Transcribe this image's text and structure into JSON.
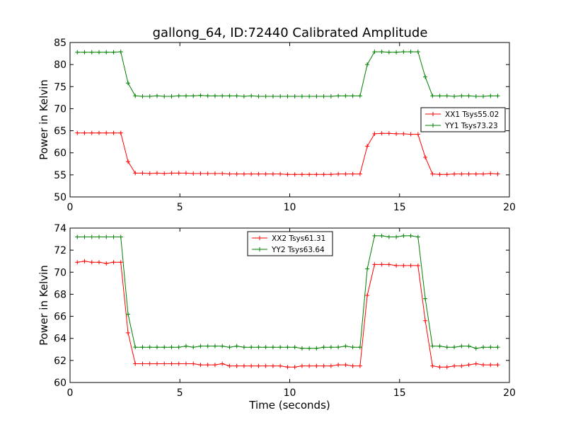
{
  "figure": {
    "title": "gallong_64, ID:72440 Calibrated Amplitude"
  },
  "chart_data": [
    {
      "type": "line",
      "title": "gallong_64, ID:72440 Calibrated Amplitude",
      "xlabel": "",
      "ylabel": "Power in Kelvin",
      "xlim": [
        0,
        20
      ],
      "ylim": [
        50,
        85
      ],
      "xticks": [
        "0",
        "5",
        "10",
        "15",
        "20"
      ],
      "yticks": [
        "50",
        "55",
        "60",
        "65",
        "70",
        "75",
        "80",
        "85"
      ],
      "grid": false,
      "legend_position": "center-right",
      "x": [
        0.33,
        0.66,
        0.99,
        1.32,
        1.65,
        1.98,
        2.31,
        2.64,
        2.97,
        3.3,
        3.63,
        3.96,
        4.29,
        4.62,
        4.95,
        5.28,
        5.61,
        5.94,
        6.27,
        6.6,
        6.93,
        7.26,
        7.59,
        7.92,
        8.25,
        8.58,
        8.91,
        9.24,
        9.57,
        9.9,
        10.23,
        10.56,
        10.89,
        11.22,
        11.55,
        11.88,
        12.21,
        12.54,
        12.87,
        13.2,
        13.53,
        13.86,
        14.19,
        14.52,
        14.85,
        15.18,
        15.51,
        15.84,
        16.17,
        16.5,
        16.83,
        17.16,
        17.49,
        17.82,
        18.15,
        18.48,
        18.81,
        19.14,
        19.47
      ],
      "series": [
        {
          "name": "XX1 Tsys55.02",
          "color": "#ff0000",
          "values": [
            64.5,
            64.5,
            64.5,
            64.5,
            64.5,
            64.5,
            64.5,
            58.0,
            55.4,
            55.4,
            55.3,
            55.4,
            55.3,
            55.4,
            55.4,
            55.4,
            55.3,
            55.3,
            55.3,
            55.3,
            55.3,
            55.2,
            55.2,
            55.2,
            55.2,
            55.2,
            55.2,
            55.2,
            55.2,
            55.1,
            55.1,
            55.1,
            55.1,
            55.1,
            55.1,
            55.1,
            55.2,
            55.2,
            55.2,
            55.2,
            61.5,
            64.3,
            64.4,
            64.4,
            64.3,
            64.3,
            64.2,
            64.2,
            59.0,
            55.2,
            55.1,
            55.1,
            55.2,
            55.2,
            55.2,
            55.2,
            55.2,
            55.3,
            55.2
          ]
        },
        {
          "name": "YY1 Tsys73.23",
          "color": "#008000",
          "values": [
            82.8,
            82.8,
            82.8,
            82.8,
            82.8,
            82.8,
            82.9,
            75.8,
            72.9,
            72.8,
            72.8,
            72.9,
            72.8,
            72.8,
            72.9,
            72.9,
            72.9,
            73.0,
            72.9,
            72.9,
            72.9,
            72.9,
            72.9,
            72.8,
            72.9,
            72.8,
            72.8,
            72.8,
            72.8,
            72.8,
            72.8,
            72.8,
            72.8,
            72.8,
            72.8,
            72.8,
            72.9,
            72.9,
            72.9,
            72.9,
            80.0,
            82.9,
            82.9,
            82.8,
            82.8,
            82.9,
            82.9,
            82.9,
            77.2,
            72.9,
            72.9,
            72.9,
            72.8,
            72.9,
            72.9,
            72.8,
            72.8,
            72.9,
            72.9
          ]
        }
      ]
    },
    {
      "type": "line",
      "title": "",
      "xlabel": "Time (seconds)",
      "ylabel": "Power in Kelvin",
      "xlim": [
        0,
        20
      ],
      "ylim": [
        60,
        74
      ],
      "xticks": [
        "0",
        "5",
        "10",
        "15",
        "20"
      ],
      "yticks": [
        "60",
        "62",
        "64",
        "66",
        "68",
        "70",
        "72",
        "74"
      ],
      "grid": false,
      "legend_position": "top-center",
      "x": [
        0.33,
        0.66,
        0.99,
        1.32,
        1.65,
        1.98,
        2.31,
        2.64,
        2.97,
        3.3,
        3.63,
        3.96,
        4.29,
        4.62,
        4.95,
        5.28,
        5.61,
        5.94,
        6.27,
        6.6,
        6.93,
        7.26,
        7.59,
        7.92,
        8.25,
        8.58,
        8.91,
        9.24,
        9.57,
        9.9,
        10.23,
        10.56,
        10.89,
        11.22,
        11.55,
        11.88,
        12.21,
        12.54,
        12.87,
        13.2,
        13.53,
        13.86,
        14.19,
        14.52,
        14.85,
        15.18,
        15.51,
        15.84,
        16.17,
        16.5,
        16.83,
        17.16,
        17.49,
        17.82,
        18.15,
        18.48,
        18.81,
        19.14,
        19.47
      ],
      "series": [
        {
          "name": "XX2 Tsys61.31",
          "color": "#ff0000",
          "values": [
            70.9,
            71.0,
            70.9,
            70.9,
            70.8,
            70.9,
            70.9,
            64.5,
            61.7,
            61.7,
            61.7,
            61.7,
            61.7,
            61.7,
            61.7,
            61.7,
            61.7,
            61.6,
            61.6,
            61.6,
            61.7,
            61.5,
            61.5,
            61.5,
            61.5,
            61.5,
            61.5,
            61.5,
            61.5,
            61.4,
            61.4,
            61.5,
            61.5,
            61.5,
            61.5,
            61.5,
            61.6,
            61.6,
            61.5,
            61.5,
            67.9,
            70.7,
            70.7,
            70.7,
            70.6,
            70.6,
            70.6,
            70.6,
            65.6,
            61.5,
            61.4,
            61.4,
            61.5,
            61.5,
            61.6,
            61.7,
            61.6,
            61.6,
            61.6
          ]
        },
        {
          "name": "YY2 Tsys63.64",
          "color": "#008000",
          "values": [
            73.2,
            73.2,
            73.2,
            73.2,
            73.2,
            73.2,
            73.2,
            66.2,
            63.2,
            63.2,
            63.2,
            63.2,
            63.2,
            63.2,
            63.2,
            63.3,
            63.2,
            63.3,
            63.3,
            63.3,
            63.3,
            63.2,
            63.3,
            63.2,
            63.2,
            63.2,
            63.2,
            63.2,
            63.2,
            63.2,
            63.2,
            63.1,
            63.1,
            63.1,
            63.2,
            63.2,
            63.2,
            63.3,
            63.2,
            63.2,
            70.3,
            73.3,
            73.3,
            73.2,
            73.2,
            73.3,
            73.3,
            73.2,
            67.6,
            63.3,
            63.3,
            63.2,
            63.2,
            63.3,
            63.3,
            63.1,
            63.2,
            63.2,
            63.2
          ]
        }
      ]
    }
  ]
}
